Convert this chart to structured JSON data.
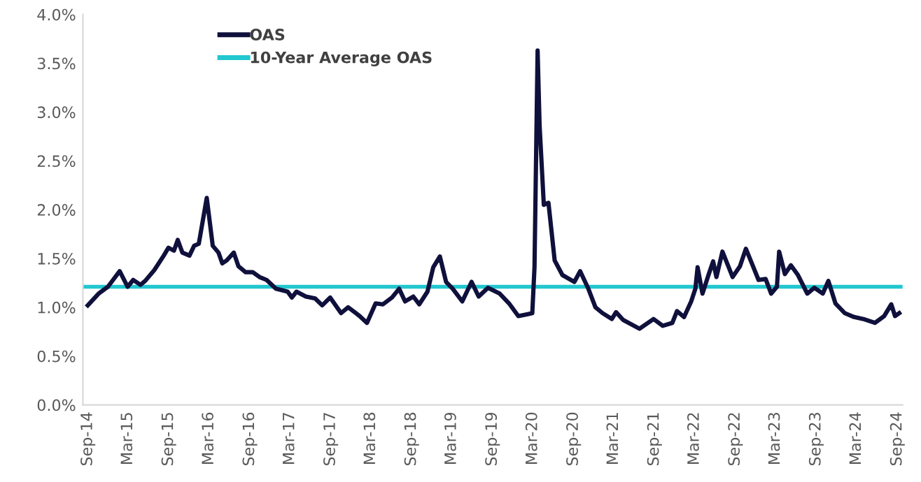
{
  "chart_data": {
    "type": "line",
    "x": [
      "2014-09-01",
      "2014-10-20",
      "2014-12-01",
      "2015-01-23",
      "2015-02-28",
      "2015-03-25",
      "2015-04-27",
      "2015-05-18",
      "2015-06-28",
      "2015-08-10",
      "2015-08-31",
      "2015-09-25",
      "2015-10-12",
      "2015-11-02",
      "2015-12-04",
      "2015-12-25",
      "2016-01-15",
      "2016-02-20",
      "2016-03-18",
      "2016-04-13",
      "2016-04-30",
      "2016-05-20",
      "2016-06-21",
      "2016-07-12",
      "2016-08-13",
      "2016-09-14",
      "2016-10-15",
      "2016-11-16",
      "2016-12-28",
      "2017-02-19",
      "2017-03-10",
      "2017-03-31",
      "2017-05-12",
      "2017-06-23",
      "2017-07-25",
      "2017-08-30",
      "2017-10-18",
      "2017-11-19",
      "2018-01-10",
      "2018-02-12",
      "2018-03-23",
      "2018-04-25",
      "2018-06-05",
      "2018-07-07",
      "2018-08-03",
      "2018-09-09",
      "2018-10-06",
      "2018-11-12",
      "2018-12-08",
      "2019-01-07",
      "2019-02-04",
      "2019-03-06",
      "2019-04-18",
      "2019-05-30",
      "2019-07-01",
      "2019-08-12",
      "2019-10-04",
      "2019-11-15",
      "2019-12-27",
      "2020-02-08",
      "2020-02-28",
      "2020-03-09",
      "2020-03-23",
      "2020-04-01",
      "2020-04-20",
      "2020-05-11",
      "2020-06-08",
      "2020-07-13",
      "2020-09-05",
      "2020-10-01",
      "2020-11-07",
      "2020-12-09",
      "2021-01-10",
      "2021-02-21",
      "2021-03-12",
      "2021-04-13",
      "2021-06-26",
      "2021-08-28",
      "2021-10-09",
      "2021-11-21",
      "2021-12-12",
      "2022-01-13",
      "2022-02-14",
      "2022-03-05",
      "2022-03-15",
      "2022-04-06",
      "2022-05-03",
      "2022-05-24",
      "2022-06-08",
      "2022-07-05",
      "2022-07-30",
      "2022-08-20",
      "2022-09-22",
      "2022-10-19",
      "2022-11-13",
      "2022-12-15",
      "2023-01-16",
      "2023-02-10",
      "2023-03-08",
      "2023-03-18",
      "2023-04-13",
      "2023-05-10",
      "2023-06-11",
      "2023-07-23",
      "2023-08-24",
      "2023-10-01",
      "2023-10-26",
      "2023-11-27",
      "2024-01-08",
      "2024-02-19",
      "2024-04-01",
      "2024-05-23",
      "2024-07-04",
      "2024-08-05",
      "2024-08-22",
      "2024-09-10"
    ],
    "series": [
      {
        "name": "OAS",
        "color": "#10103c",
        "values": [
          1.02,
          1.14,
          1.21,
          1.37,
          1.21,
          1.28,
          1.23,
          1.27,
          1.38,
          1.53,
          1.61,
          1.58,
          1.69,
          1.56,
          1.53,
          1.63,
          1.65,
          2.12,
          1.63,
          1.56,
          1.45,
          1.48,
          1.56,
          1.42,
          1.36,
          1.36,
          1.31,
          1.28,
          1.19,
          1.16,
          1.1,
          1.16,
          1.11,
          1.09,
          1.02,
          1.1,
          0.94,
          1.0,
          0.91,
          0.84,
          1.04,
          1.03,
          1.1,
          1.19,
          1.06,
          1.11,
          1.03,
          1.16,
          1.41,
          1.52,
          1.26,
          1.19,
          1.06,
          1.26,
          1.11,
          1.2,
          1.14,
          1.04,
          0.91,
          0.93,
          0.94,
          1.41,
          3.63,
          2.86,
          2.05,
          2.07,
          1.48,
          1.33,
          1.26,
          1.37,
          1.19,
          1.0,
          0.94,
          0.88,
          0.95,
          0.87,
          0.78,
          0.88,
          0.81,
          0.84,
          0.96,
          0.9,
          1.06,
          1.19,
          1.41,
          1.14,
          1.33,
          1.47,
          1.31,
          1.57,
          1.43,
          1.31,
          1.42,
          1.6,
          1.46,
          1.28,
          1.29,
          1.14,
          1.21,
          1.57,
          1.34,
          1.43,
          1.33,
          1.14,
          1.2,
          1.14,
          1.27,
          1.04,
          0.94,
          0.9,
          0.88,
          0.84,
          0.91,
          1.03,
          0.91,
          0.94
        ]
      }
    ],
    "ref_lines": [
      {
        "axis": "y",
        "value": 1.21,
        "label": "10-Year Average OAS",
        "color": "#22c7cf"
      }
    ],
    "ylim": [
      0,
      4
    ],
    "yticks": [
      {
        "value": 0,
        "label": "0.0%"
      },
      {
        "value": 0.5,
        "label": "0.5%"
      },
      {
        "value": 1,
        "label": "1.0%"
      },
      {
        "value": 1.5,
        "label": "1.5%"
      },
      {
        "value": 2,
        "label": "2.0%"
      },
      {
        "value": 2.5,
        "label": "2.5%"
      },
      {
        "value": 3,
        "label": "3.0%"
      },
      {
        "value": 3.5,
        "label": "3.5%"
      },
      {
        "value": 4,
        "label": "4.0%"
      }
    ],
    "xlim": [
      "2014-08-10",
      "2024-09-25"
    ],
    "xticks": [
      {
        "value": "2014-09-01",
        "label": "Sep-14"
      },
      {
        "value": "2015-03-01",
        "label": "Mar-15"
      },
      {
        "value": "2015-09-01",
        "label": "Sep-15"
      },
      {
        "value": "2016-03-01",
        "label": "Mar-16"
      },
      {
        "value": "2016-09-01",
        "label": "Sep-16"
      },
      {
        "value": "2017-03-01",
        "label": "Mar-17"
      },
      {
        "value": "2017-09-01",
        "label": "Sep-17"
      },
      {
        "value": "2018-03-01",
        "label": "Mar-18"
      },
      {
        "value": "2018-09-01",
        "label": "Sep-18"
      },
      {
        "value": "2019-03-01",
        "label": "Mar-19"
      },
      {
        "value": "2019-09-01",
        "label": "Sep-19"
      },
      {
        "value": "2020-03-01",
        "label": "Mar-20"
      },
      {
        "value": "2020-09-01",
        "label": "Sep-20"
      },
      {
        "value": "2021-03-01",
        "label": "Mar-21"
      },
      {
        "value": "2021-09-01",
        "label": "Sep-21"
      },
      {
        "value": "2022-03-01",
        "label": "Mar-22"
      },
      {
        "value": "2022-09-01",
        "label": "Sep-22"
      },
      {
        "value": "2023-03-01",
        "label": "Mar-23"
      },
      {
        "value": "2023-09-01",
        "label": "Sep-23"
      },
      {
        "value": "2024-03-01",
        "label": "Mar-24"
      },
      {
        "value": "2024-09-01",
        "label": "Sep-24"
      }
    ],
    "grid": false,
    "legend": "top left",
    "marker": "none",
    "line_style": "solid"
  }
}
